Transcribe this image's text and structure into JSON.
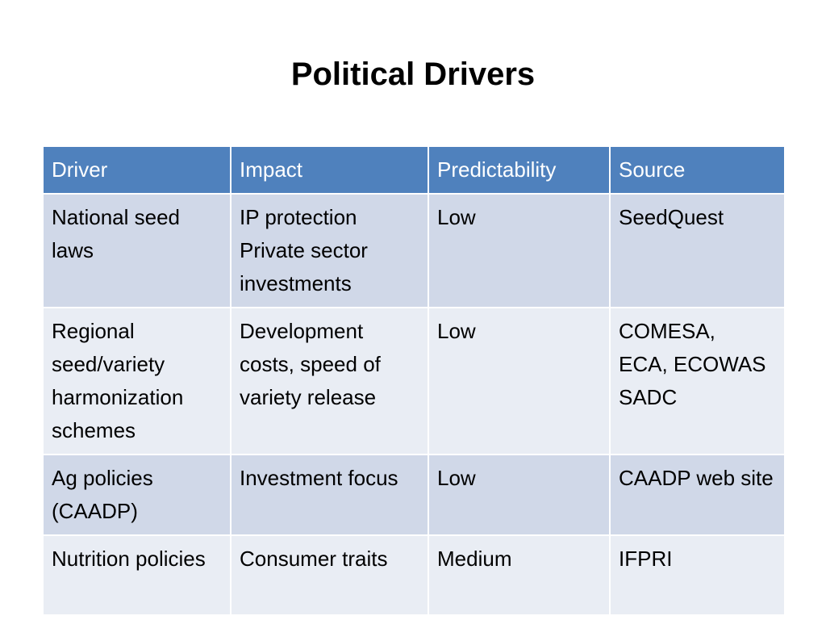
{
  "header": {
    "title": "Political Drivers"
  },
  "table": {
    "columns": [
      "Driver",
      "Impact",
      "Predictability",
      "Source"
    ],
    "rows": [
      [
        "National seed laws",
        "IP protection\nPrivate sector investments",
        "Low",
        "SeedQuest"
      ],
      [
        "Regional seed/variety harmonization schemes",
        "Development costs, speed of variety release",
        "Low",
        "COMESA,\nECA, ECOWAS SADC"
      ],
      [
        "Ag policies (CAADP)",
        "Investment focus",
        "Low",
        "CAADP web site"
      ],
      [
        "Nutrition policies",
        "Consumer traits",
        "Medium",
        "IFPRI"
      ]
    ]
  }
}
